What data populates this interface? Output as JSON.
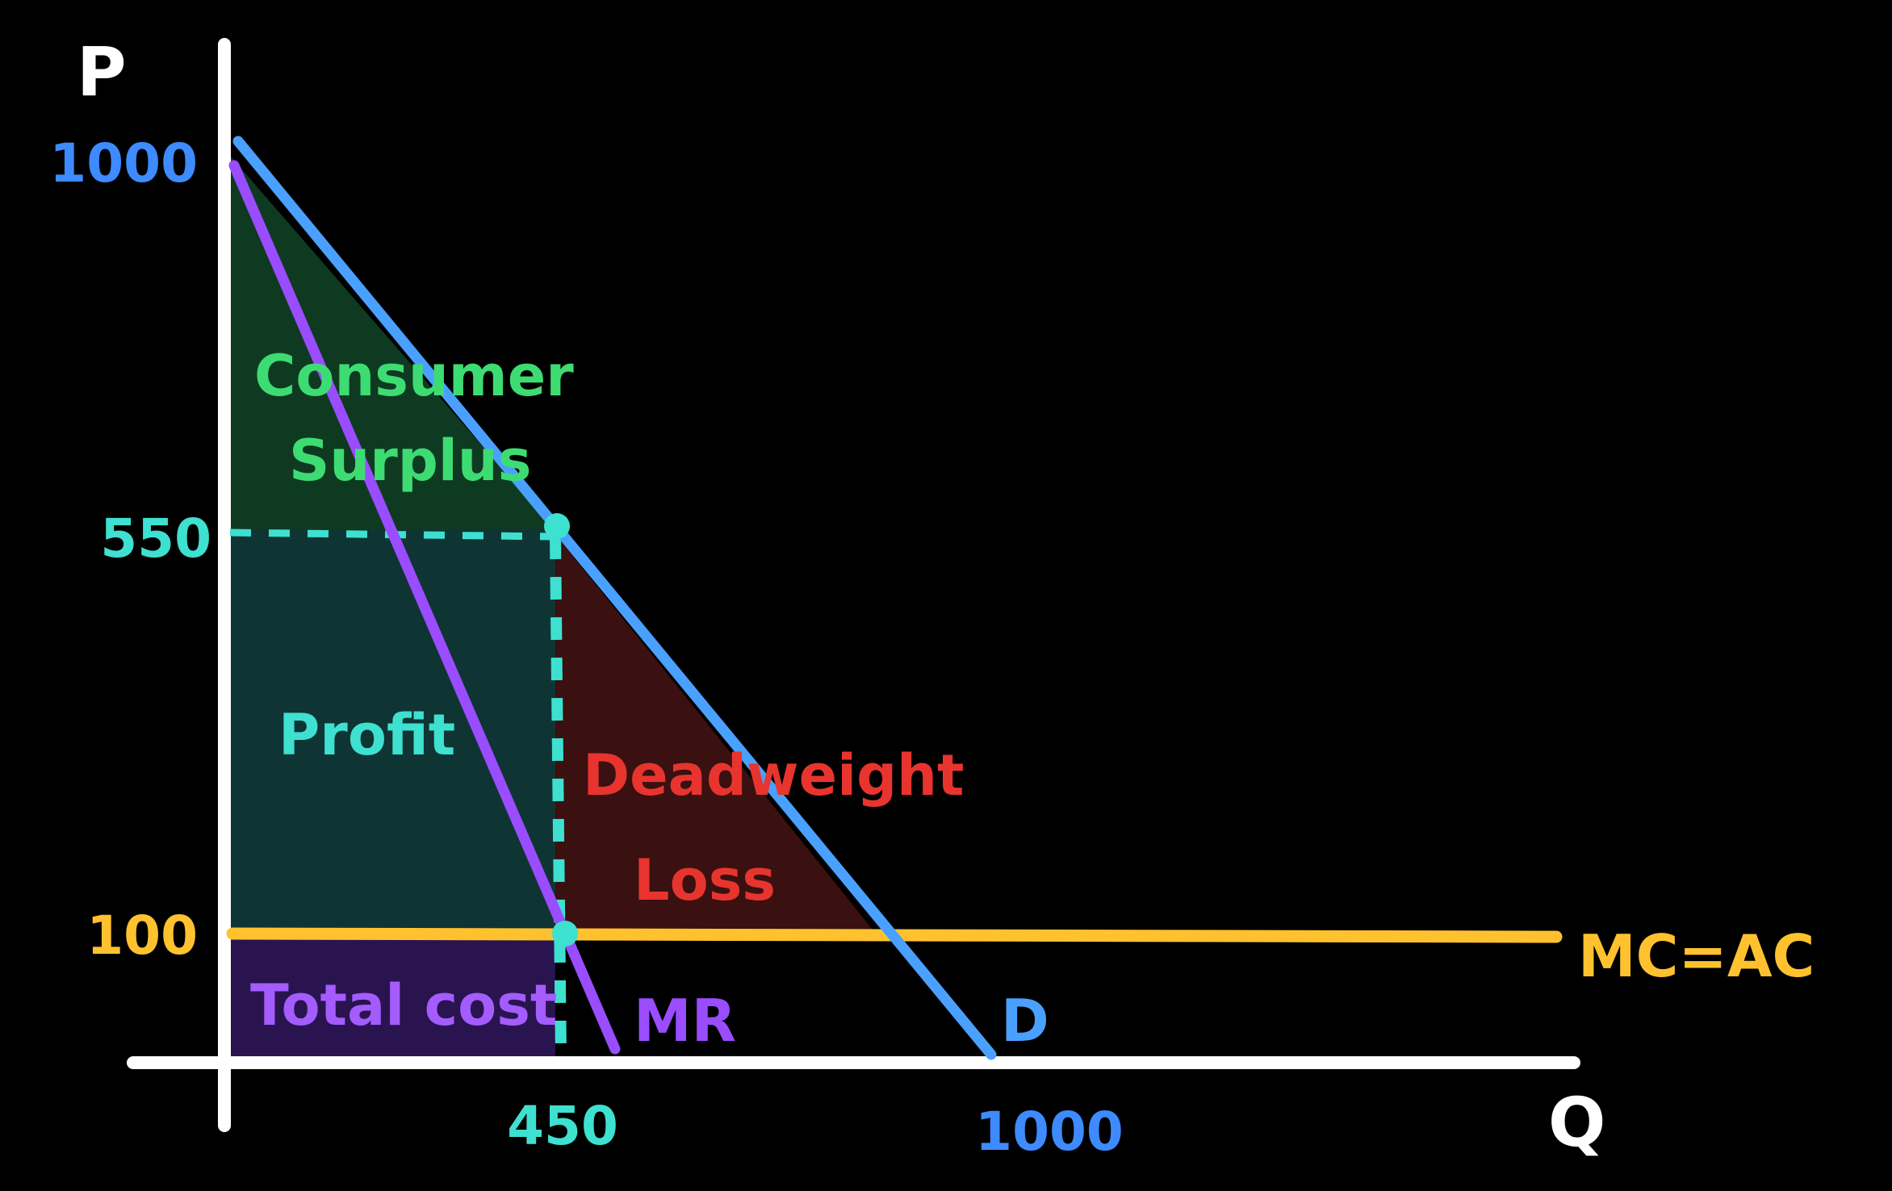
{
  "axes": {
    "y_label": "P",
    "x_label": "Q"
  },
  "ticks": {
    "y": [
      {
        "label": "1000",
        "value": 1000,
        "color": "#3d8bff"
      },
      {
        "label": "550",
        "value": 550,
        "color": "#3ee0d0"
      },
      {
        "label": "100",
        "value": 100,
        "color": "#ffc22e"
      }
    ],
    "x": [
      {
        "label": "450",
        "value": 450,
        "color": "#3ee0d0"
      },
      {
        "label": "1000",
        "value": 1000,
        "color": "#3d8bff"
      }
    ]
  },
  "curves": {
    "demand": {
      "label": "D",
      "color": "#4aa0ff"
    },
    "mr": {
      "label": "MR",
      "color": "#9a4cff"
    },
    "mc": {
      "label": "MC=AC",
      "color": "#ffc22e"
    }
  },
  "regions": {
    "consumer_surplus": {
      "line1": "Consumer",
      "line2": "Surplus",
      "fill": "#0f3a22",
      "text_color": "#3ddc72"
    },
    "profit": {
      "label": "Profit",
      "fill": "#0f3434",
      "text_color": "#3ee0d0"
    },
    "deadweight_loss": {
      "line1": "Deadweight",
      "line2": "Loss",
      "fill": "#3a1010",
      "text_color": "#e8342e"
    },
    "total_cost": {
      "label": "Total cost",
      "fill": "#2a1450",
      "text_color": "#a45cff"
    }
  },
  "equilibrium": {
    "q": 450,
    "p": 550,
    "mc": 100,
    "point_color": "#3ee0d0"
  }
}
